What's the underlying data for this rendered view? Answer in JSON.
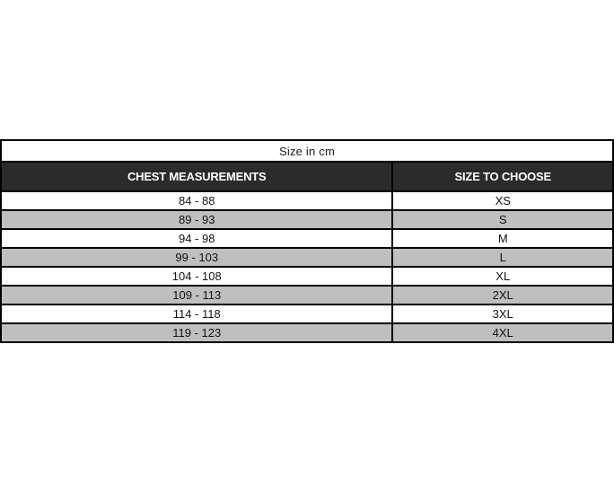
{
  "size_chart": {
    "title": "Size in cm",
    "columns": [
      "CHEST MEASUREMENTS",
      "SIZE TO CHOOSE"
    ],
    "rows": [
      {
        "chest": "84 - 88",
        "size": "XS"
      },
      {
        "chest": "89 - 93",
        "size": "S"
      },
      {
        "chest": "94 - 98",
        "size": "M"
      },
      {
        "chest": "99 - 103",
        "size": "L"
      },
      {
        "chest": "104 - 108",
        "size": "XL"
      },
      {
        "chest": "109 - 113",
        "size": "2XL"
      },
      {
        "chest": "114 - 118",
        "size": "3XL"
      },
      {
        "chest": "119 - 123",
        "size": "4XL"
      }
    ],
    "colors": {
      "header_bg": "#2b2b2b",
      "header_text": "#ffffff",
      "row_alt_bg": "#bfbfbf",
      "border": "#000000"
    }
  }
}
